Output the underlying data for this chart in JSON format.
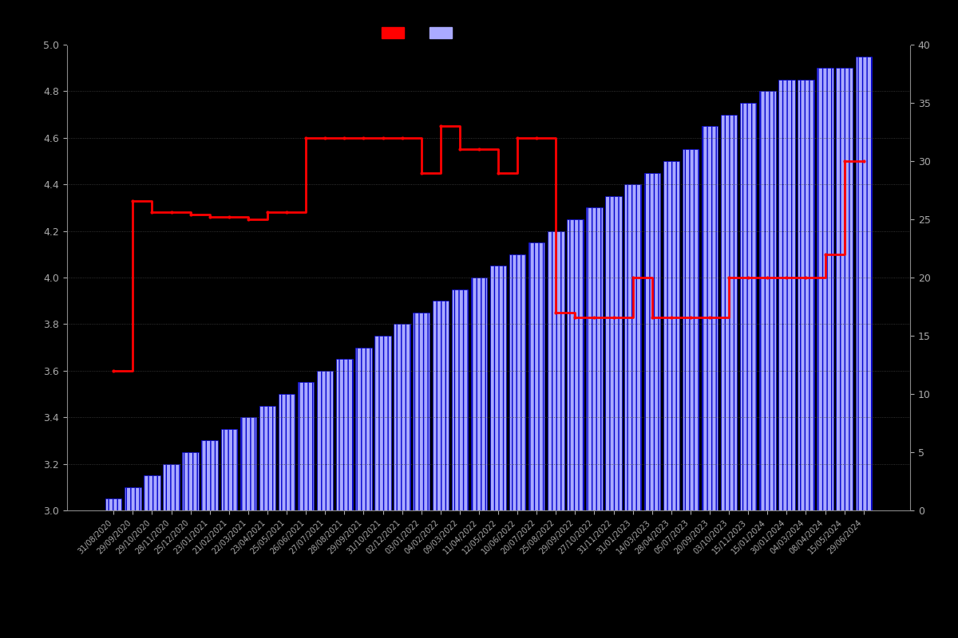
{
  "background_color": "#000000",
  "bar_facecolor": "#aaaaff",
  "bar_edgecolor": "#0000cc",
  "line_color": "#ff0000",
  "left_ylim": [
    3.0,
    5.0
  ],
  "right_ylim": [
    0,
    40
  ],
  "left_yticks": [
    3.0,
    3.2,
    3.4,
    3.6,
    3.8,
    4.0,
    4.2,
    4.4,
    4.6,
    4.8,
    5.0
  ],
  "right_yticks": [
    0,
    5,
    10,
    15,
    20,
    25,
    30,
    35,
    40
  ],
  "tick_color": "#888888",
  "label_color": "#aaaaaa",
  "grid_color": "#444444",
  "dates": [
    "31/08/2020",
    "29/09/2020",
    "29/10/2020",
    "28/11/2020",
    "25/12/2020",
    "23/01/2021",
    "21/02/2021",
    "22/03/2021",
    "23/04/2021",
    "25/05/2021",
    "26/06/2021",
    "27/07/2021",
    "28/08/2021",
    "29/09/2021",
    "31/10/2021",
    "02/12/2021",
    "03/01/2022",
    "04/02/2022",
    "09/03/2022",
    "11/04/2022",
    "12/05/2022",
    "10/06/2022",
    "20/07/2022",
    "25/08/2022",
    "29/09/2022",
    "27/10/2022",
    "31/11/2022",
    "31/01/2023",
    "14/03/2023",
    "28/04/2023",
    "05/07/2023",
    "20/09/2023",
    "03/10/2023",
    "15/11/2023",
    "15/01/2024",
    "30/01/2024",
    "04/03/2024",
    "08/04/2024",
    "15/05/2024",
    "29/06/2024"
  ],
  "bar_values": [
    1,
    2,
    3,
    4,
    5,
    6,
    7,
    8,
    9,
    10,
    11,
    12,
    13,
    14,
    15,
    16,
    17,
    18,
    19,
    20,
    21,
    22,
    23,
    24,
    25,
    26,
    27,
    28,
    29,
    30,
    31,
    33,
    34,
    35,
    36,
    37,
    37,
    38,
    38,
    39
  ],
  "rating_values": [
    3.6,
    4.33,
    4.28,
    4.28,
    4.27,
    4.26,
    4.26,
    4.25,
    4.28,
    4.28,
    4.6,
    4.6,
    4.6,
    4.6,
    4.6,
    4.6,
    4.45,
    4.65,
    4.55,
    4.55,
    4.45,
    4.6,
    4.6,
    3.85,
    3.83,
    3.83,
    3.83,
    4.0,
    3.83,
    3.83,
    3.83,
    3.83,
    4.0,
    4.0,
    4.0,
    4.0,
    4.0,
    4.1,
    4.5,
    4.5
  ]
}
